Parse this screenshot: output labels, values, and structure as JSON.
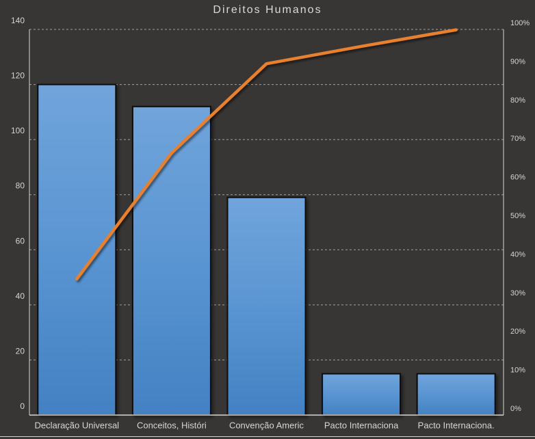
{
  "chart_data": {
    "type": "bar",
    "subtype": "pareto-combo (bars + cumulative percent line)",
    "title": "Direitos Humanos",
    "categories": [
      "Declaração Universal",
      "Conceitos, Históri",
      "Convenção Americ",
      "Pacto Internaciona",
      "Pacto Internaciona."
    ],
    "series": [
      {
        "role": "bars",
        "axis": "left",
        "values": [
          120,
          112,
          79,
          15,
          15
        ]
      },
      {
        "role": "cumulative-line",
        "axis": "right",
        "values": [
          35.3,
          68.0,
          91.1,
          95.6,
          99.9
        ]
      }
    ],
    "left_axis": {
      "min": 0,
      "max": 140,
      "step": 20,
      "tick_labels": [
        "0",
        "20",
        "40",
        "60",
        "80",
        "100",
        "120",
        "140"
      ]
    },
    "right_axis": {
      "min": 0,
      "max": 100,
      "step": 10,
      "tick_labels": [
        "0%",
        "10%",
        "20%",
        "30%",
        "40%",
        "50%",
        "60%",
        "70%",
        "80%",
        "90%",
        "100%"
      ]
    },
    "grid": {
      "horizontal": true,
      "style": "dashed",
      "at_left_axis_steps": true
    },
    "legend": "none",
    "colors": {
      "background": "#383634",
      "bar_fill_top": "#71A4DB",
      "bar_fill_mid": "#5A95D2",
      "bar_fill_bottom": "#4381C3",
      "bar_border": "#0A0A0A",
      "line": "#E8802F",
      "title_text": "#DCDAD6",
      "tick_text": "#D7D4D0",
      "category_text": "#D8D5D1",
      "gridline": "#C9C7C4",
      "axis_line": "#D9D7D4",
      "baseline": "#E8E6E3"
    }
  }
}
